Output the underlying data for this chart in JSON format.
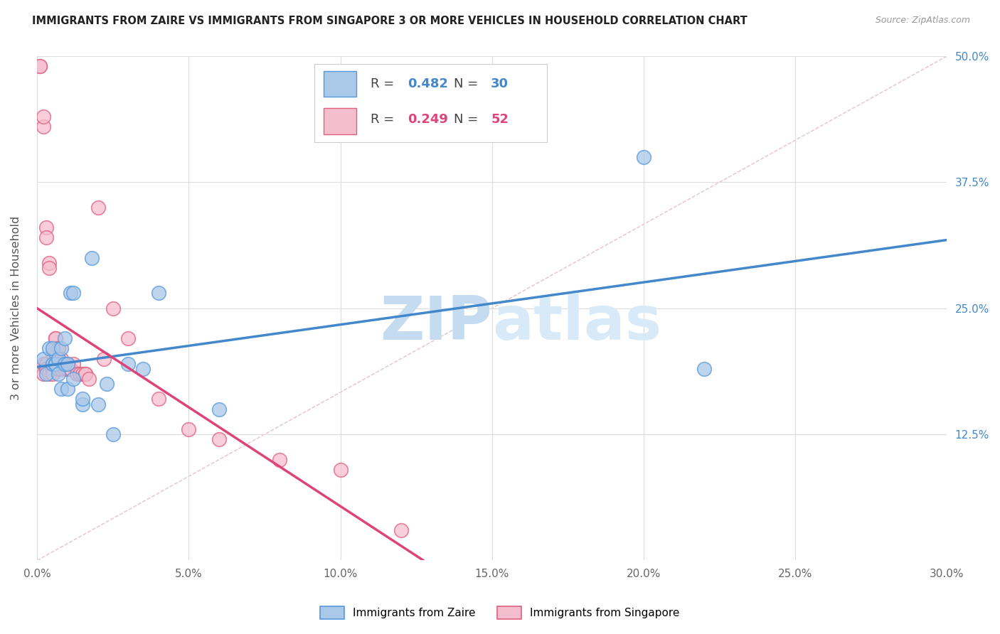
{
  "title": "IMMIGRANTS FROM ZAIRE VS IMMIGRANTS FROM SINGAPORE 3 OR MORE VEHICLES IN HOUSEHOLD CORRELATION CHART",
  "source": "Source: ZipAtlas.com",
  "ylabel": "3 or more Vehicles in Household",
  "xlim": [
    0.0,
    0.3
  ],
  "ylim": [
    0.0,
    0.5
  ],
  "xticks": [
    0.0,
    0.05,
    0.1,
    0.15,
    0.2,
    0.25,
    0.3
  ],
  "yticks": [
    0.0,
    0.125,
    0.25,
    0.375,
    0.5
  ],
  "xticklabels": [
    "0.0%",
    "5.0%",
    "10.0%",
    "15.0%",
    "20.0%",
    "25.0%",
    "30.0%"
  ],
  "yticklabels_right": [
    "",
    "12.5%",
    "25.0%",
    "37.5%",
    "50.0%"
  ],
  "legend_r_zaire": "0.482",
  "legend_n_zaire": "30",
  "legend_r_singapore": "0.249",
  "legend_n_singapore": "52",
  "legend_label_zaire": "Immigrants from Zaire",
  "legend_label_singapore": "Immigrants from Singapore",
  "zaire_face_color": "#aac8e8",
  "singapore_face_color": "#f5bece",
  "zaire_edge_color": "#5599dd",
  "singapore_edge_color": "#e06080",
  "zaire_line_color": "#4488cc",
  "singapore_line_color": "#dd4477",
  "watermark_zip": "ZIP",
  "watermark_atlas": "atlas",
  "watermark_color": "#c5dcf0",
  "grid_color": "#dddddd",
  "zaire_x": [
    0.002,
    0.003,
    0.004,
    0.005,
    0.005,
    0.006,
    0.006,
    0.007,
    0.007,
    0.008,
    0.008,
    0.009,
    0.009,
    0.01,
    0.01,
    0.011,
    0.012,
    0.012,
    0.015,
    0.015,
    0.018,
    0.02,
    0.023,
    0.025,
    0.03,
    0.035,
    0.04,
    0.06,
    0.2,
    0.22
  ],
  "zaire_y": [
    0.2,
    0.185,
    0.21,
    0.195,
    0.21,
    0.195,
    0.195,
    0.185,
    0.2,
    0.17,
    0.21,
    0.195,
    0.22,
    0.195,
    0.17,
    0.265,
    0.18,
    0.265,
    0.155,
    0.16,
    0.3,
    0.155,
    0.175,
    0.125,
    0.195,
    0.19,
    0.265,
    0.15,
    0.4,
    0.19
  ],
  "singapore_x": [
    0.001,
    0.001,
    0.002,
    0.002,
    0.002,
    0.002,
    0.003,
    0.003,
    0.003,
    0.003,
    0.004,
    0.004,
    0.004,
    0.005,
    0.005,
    0.005,
    0.005,
    0.006,
    0.006,
    0.006,
    0.007,
    0.007,
    0.007,
    0.007,
    0.007,
    0.008,
    0.008,
    0.008,
    0.009,
    0.009,
    0.009,
    0.01,
    0.01,
    0.011,
    0.011,
    0.012,
    0.013,
    0.014,
    0.015,
    0.016,
    0.016,
    0.017,
    0.02,
    0.022,
    0.025,
    0.03,
    0.04,
    0.05,
    0.06,
    0.08,
    0.1,
    0.12
  ],
  "singapore_y": [
    0.49,
    0.49,
    0.43,
    0.44,
    0.195,
    0.185,
    0.33,
    0.32,
    0.195,
    0.19,
    0.295,
    0.29,
    0.185,
    0.195,
    0.205,
    0.19,
    0.185,
    0.22,
    0.22,
    0.195,
    0.19,
    0.195,
    0.2,
    0.21,
    0.21,
    0.19,
    0.195,
    0.2,
    0.19,
    0.195,
    0.195,
    0.195,
    0.19,
    0.19,
    0.19,
    0.195,
    0.185,
    0.185,
    0.185,
    0.185,
    0.185,
    0.18,
    0.35,
    0.2,
    0.25,
    0.22,
    0.16,
    0.13,
    0.12,
    0.1,
    0.09,
    0.03
  ]
}
